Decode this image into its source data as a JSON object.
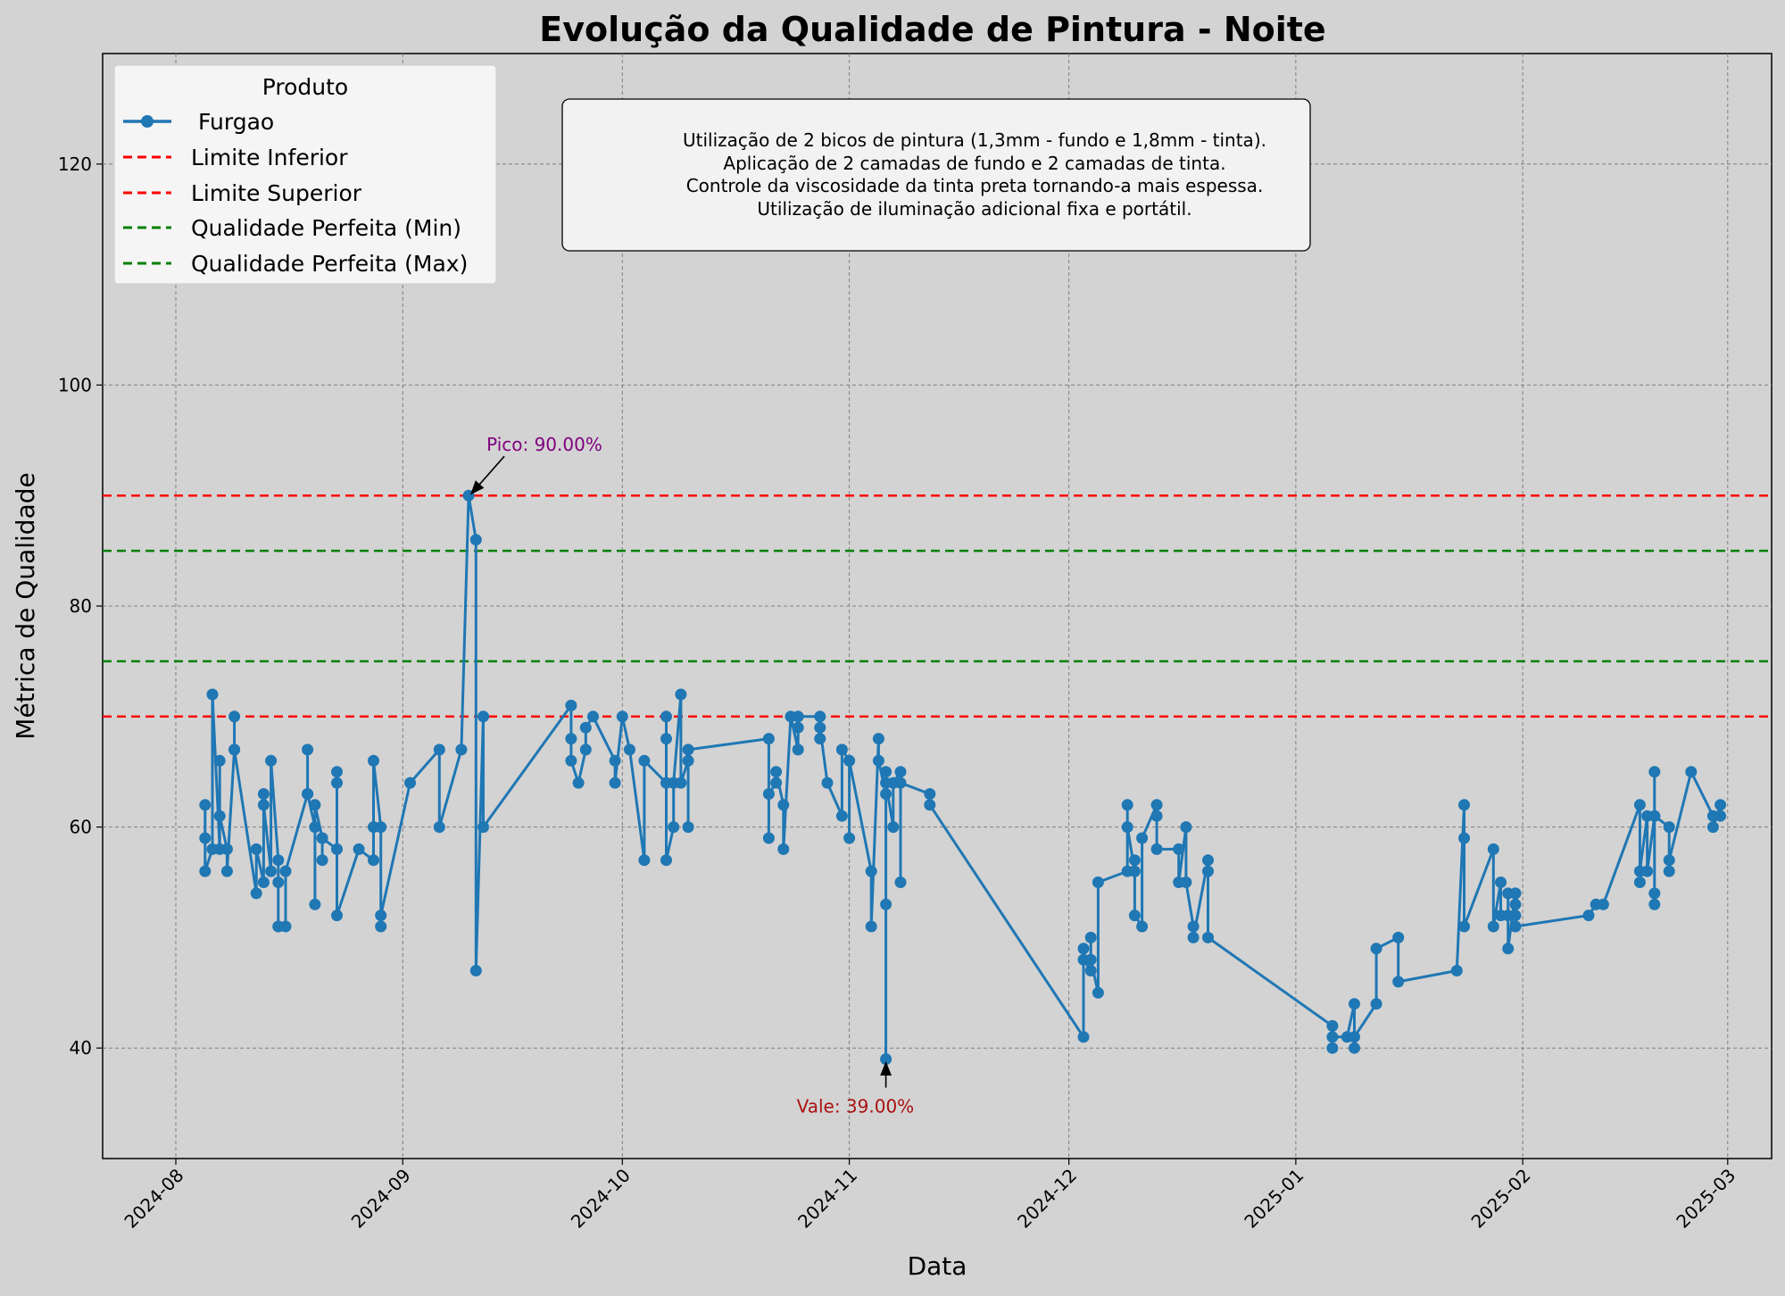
{
  "chart_data": {
    "type": "line",
    "title": "Evolução da Qualidade de Pintura - Noite",
    "xlabel": "Data",
    "ylabel": "Métrica de Qualidade",
    "xlim": [
      "2024-07-22",
      "2025-03-07"
    ],
    "ylim": [
      30,
      130
    ],
    "x_ticks": [
      "2024-08",
      "2024-09",
      "2024-10",
      "2024-11",
      "2024-12",
      "2025-01",
      "2025-02",
      "2025-03"
    ],
    "y_ticks": [
      40,
      60,
      80,
      100,
      120
    ],
    "grid": true,
    "legend": {
      "title": "Produto",
      "position": "top-left",
      "entries": [
        "Furgao",
        "Limite Inferior",
        "Limite Superior",
        "Qualidade Perfeita (Min)",
        "Qualidade Perfeita (Max)"
      ]
    },
    "series": [
      {
        "name": "Furgao",
        "color": "#1f77b4",
        "points": [
          [
            "2024-08-05",
            62
          ],
          [
            "2024-08-05",
            59
          ],
          [
            "2024-08-05",
            56
          ],
          [
            "2024-08-06",
            58
          ],
          [
            "2024-08-06",
            72
          ],
          [
            "2024-08-07",
            58
          ],
          [
            "2024-08-07",
            66
          ],
          [
            "2024-08-07",
            61
          ],
          [
            "2024-08-08",
            58
          ],
          [
            "2024-08-08",
            56
          ],
          [
            "2024-08-09",
            67
          ],
          [
            "2024-08-09",
            70
          ],
          [
            "2024-08-09",
            67
          ],
          [
            "2024-08-12",
            54
          ],
          [
            "2024-08-12",
            58
          ],
          [
            "2024-08-13",
            55
          ],
          [
            "2024-08-13",
            63
          ],
          [
            "2024-08-13",
            62
          ],
          [
            "2024-08-14",
            56
          ],
          [
            "2024-08-14",
            66
          ],
          [
            "2024-08-15",
            57
          ],
          [
            "2024-08-15",
            51
          ],
          [
            "2024-08-15",
            55
          ],
          [
            "2024-08-15",
            51
          ],
          [
            "2024-08-16",
            51
          ],
          [
            "2024-08-16",
            56
          ],
          [
            "2024-08-19",
            63
          ],
          [
            "2024-08-19",
            67
          ],
          [
            "2024-08-19",
            63
          ],
          [
            "2024-08-20",
            60
          ],
          [
            "2024-08-20",
            53
          ],
          [
            "2024-08-20",
            62
          ],
          [
            "2024-08-21",
            59
          ],
          [
            "2024-08-21",
            57
          ],
          [
            "2024-08-21",
            59
          ],
          [
            "2024-08-23",
            58
          ],
          [
            "2024-08-23",
            64
          ],
          [
            "2024-08-23",
            65
          ],
          [
            "2024-08-23",
            52
          ],
          [
            "2024-08-26",
            58
          ],
          [
            "2024-08-28",
            57
          ],
          [
            "2024-08-28",
            60
          ],
          [
            "2024-08-28",
            66
          ],
          [
            "2024-08-29",
            60
          ],
          [
            "2024-08-29",
            51
          ],
          [
            "2024-08-29",
            52
          ],
          [
            "2024-09-02",
            64
          ],
          [
            "2024-09-06",
            67
          ],
          [
            "2024-09-06",
            60
          ],
          [
            "2024-09-09",
            67
          ],
          [
            "2024-09-10",
            90
          ],
          [
            "2024-09-11",
            86
          ],
          [
            "2024-09-11",
            47
          ],
          [
            "2024-09-12",
            70
          ],
          [
            "2024-09-12",
            60
          ],
          [
            "2024-09-24",
            71
          ],
          [
            "2024-09-24",
            68
          ],
          [
            "2024-09-24",
            66
          ],
          [
            "2024-09-25",
            64
          ],
          [
            "2024-09-26",
            67
          ],
          [
            "2024-09-26",
            69
          ],
          [
            "2024-09-27",
            70
          ],
          [
            "2024-09-30",
            66
          ],
          [
            "2024-09-30",
            64
          ],
          [
            "2024-10-01",
            70
          ],
          [
            "2024-10-02",
            67
          ],
          [
            "2024-10-04",
            57
          ],
          [
            "2024-10-04",
            66
          ],
          [
            "2024-10-07",
            64
          ],
          [
            "2024-10-07",
            70
          ],
          [
            "2024-10-07",
            68
          ],
          [
            "2024-10-07",
            57
          ],
          [
            "2024-10-08",
            60
          ],
          [
            "2024-10-08",
            64
          ],
          [
            "2024-10-09",
            72
          ],
          [
            "2024-10-09",
            64
          ],
          [
            "2024-10-10",
            66
          ],
          [
            "2024-10-10",
            60
          ],
          [
            "2024-10-10",
            67
          ],
          [
            "2024-10-21",
            68
          ],
          [
            "2024-10-21",
            59
          ],
          [
            "2024-10-21",
            63
          ],
          [
            "2024-10-22",
            64
          ],
          [
            "2024-10-22",
            65
          ],
          [
            "2024-10-23",
            62
          ],
          [
            "2024-10-23",
            58
          ],
          [
            "2024-10-24",
            70
          ],
          [
            "2024-10-25",
            67
          ],
          [
            "2024-10-25",
            69
          ],
          [
            "2024-10-25",
            70
          ],
          [
            "2024-10-28",
            70
          ],
          [
            "2024-10-28",
            68
          ],
          [
            "2024-10-28",
            69
          ],
          [
            "2024-10-29",
            64
          ],
          [
            "2024-10-31",
            61
          ],
          [
            "2024-10-31",
            67
          ],
          [
            "2024-11-01",
            66
          ],
          [
            "2024-11-01",
            59
          ],
          [
            "2024-11-01",
            66
          ],
          [
            "2024-11-04",
            56
          ],
          [
            "2024-11-04",
            51
          ],
          [
            "2024-11-05",
            68
          ],
          [
            "2024-11-05",
            66
          ],
          [
            "2024-11-06",
            63
          ],
          [
            "2024-11-06",
            65
          ],
          [
            "2024-11-06",
            53
          ],
          [
            "2024-11-06",
            39
          ],
          [
            "2024-11-06",
            64
          ],
          [
            "2024-11-07",
            60
          ],
          [
            "2024-11-07",
            64
          ],
          [
            "2024-11-08",
            65
          ],
          [
            "2024-11-08",
            55
          ],
          [
            "2024-11-08",
            64
          ],
          [
            "2024-11-12",
            63
          ],
          [
            "2024-11-12",
            62
          ],
          [
            "2024-12-03",
            41
          ],
          [
            "2024-12-03",
            49
          ],
          [
            "2024-12-03",
            48
          ],
          [
            "2024-12-04",
            47
          ],
          [
            "2024-12-04",
            50
          ],
          [
            "2024-12-04",
            48
          ],
          [
            "2024-12-05",
            45
          ],
          [
            "2024-12-05",
            55
          ],
          [
            "2024-12-09",
            56
          ],
          [
            "2024-12-09",
            62
          ],
          [
            "2024-12-09",
            60
          ],
          [
            "2024-12-10",
            56
          ],
          [
            "2024-12-10",
            57
          ],
          [
            "2024-12-10",
            52
          ],
          [
            "2024-12-11",
            51
          ],
          [
            "2024-12-11",
            59
          ],
          [
            "2024-12-13",
            62
          ],
          [
            "2024-12-13",
            61
          ],
          [
            "2024-12-13",
            58
          ],
          [
            "2024-12-16",
            58
          ],
          [
            "2024-12-16",
            55
          ],
          [
            "2024-12-17",
            60
          ],
          [
            "2024-12-17",
            55
          ],
          [
            "2024-12-18",
            51
          ],
          [
            "2024-12-18",
            50
          ],
          [
            "2024-12-20",
            57
          ],
          [
            "2024-12-20",
            56
          ],
          [
            "2024-12-20",
            50
          ],
          [
            "2025-01-06",
            42
          ],
          [
            "2025-01-06",
            40
          ],
          [
            "2025-01-06",
            41
          ],
          [
            "2025-01-08",
            41
          ],
          [
            "2025-01-09",
            44
          ],
          [
            "2025-01-09",
            40
          ],
          [
            "2025-01-09",
            41
          ],
          [
            "2025-01-12",
            44
          ],
          [
            "2025-01-12",
            49
          ],
          [
            "2025-01-15",
            50
          ],
          [
            "2025-01-15",
            46
          ],
          [
            "2025-01-23",
            47
          ],
          [
            "2025-01-24",
            62
          ],
          [
            "2025-01-24",
            59
          ],
          [
            "2025-01-24",
            51
          ],
          [
            "2025-01-28",
            58
          ],
          [
            "2025-01-28",
            51
          ],
          [
            "2025-01-29",
            55
          ],
          [
            "2025-01-29",
            52
          ],
          [
            "2025-01-30",
            52
          ],
          [
            "2025-01-30",
            54
          ],
          [
            "2025-01-30",
            49
          ],
          [
            "2025-01-31",
            54
          ],
          [
            "2025-01-31",
            52
          ],
          [
            "2025-01-31",
            51
          ],
          [
            "2025-01-31",
            53
          ],
          [
            "2025-01-31",
            54
          ],
          [
            "2025-01-31",
            51
          ],
          [
            "2025-02-10",
            52
          ],
          [
            "2025-02-11",
            53
          ],
          [
            "2025-02-12",
            53
          ],
          [
            "2025-02-17",
            62
          ],
          [
            "2025-02-17",
            55
          ],
          [
            "2025-02-17",
            56
          ],
          [
            "2025-02-18",
            61
          ],
          [
            "2025-02-18",
            56
          ],
          [
            "2025-02-19",
            61
          ],
          [
            "2025-02-19",
            53
          ],
          [
            "2025-02-19",
            54
          ],
          [
            "2025-02-19",
            65
          ],
          [
            "2025-02-19",
            61
          ],
          [
            "2025-02-21",
            60
          ],
          [
            "2025-02-21",
            56
          ],
          [
            "2025-02-21",
            57
          ],
          [
            "2025-02-24",
            65
          ],
          [
            "2025-02-27",
            61
          ],
          [
            "2025-02-27",
            60
          ],
          [
            "2025-02-28",
            62
          ],
          [
            "2025-02-28",
            61
          ]
        ]
      }
    ],
    "reference_lines": [
      {
        "name": "Limite Inferior",
        "y": 70,
        "color": "#ff0000"
      },
      {
        "name": "Limite Superior",
        "y": 90,
        "color": "#ff0000"
      },
      {
        "name": "Qualidade Perfeita (Min)",
        "y": 75,
        "color": "#008000"
      },
      {
        "name": "Qualidade Perfeita (Max)",
        "y": 85,
        "color": "#008000"
      }
    ],
    "annotations": [
      {
        "label": "Pico: 90.00%",
        "date": "2024-09-10",
        "value": 90,
        "color": "#800080"
      },
      {
        "label": "Vale: 39.00%",
        "date": "2024-11-06",
        "value": 39,
        "color": "#aa1111"
      }
    ],
    "info_box": [
      "Utilização de 2 bicos de pintura (1,3mm - fundo e 1,8mm - tinta).",
      "Aplicação de 2 camadas de fundo e 2 camadas de tinta.",
      "Controle da viscosidade da tinta preta tornando-a mais espessa.",
      "Utilização de iluminação adicional fixa e portátil."
    ]
  }
}
